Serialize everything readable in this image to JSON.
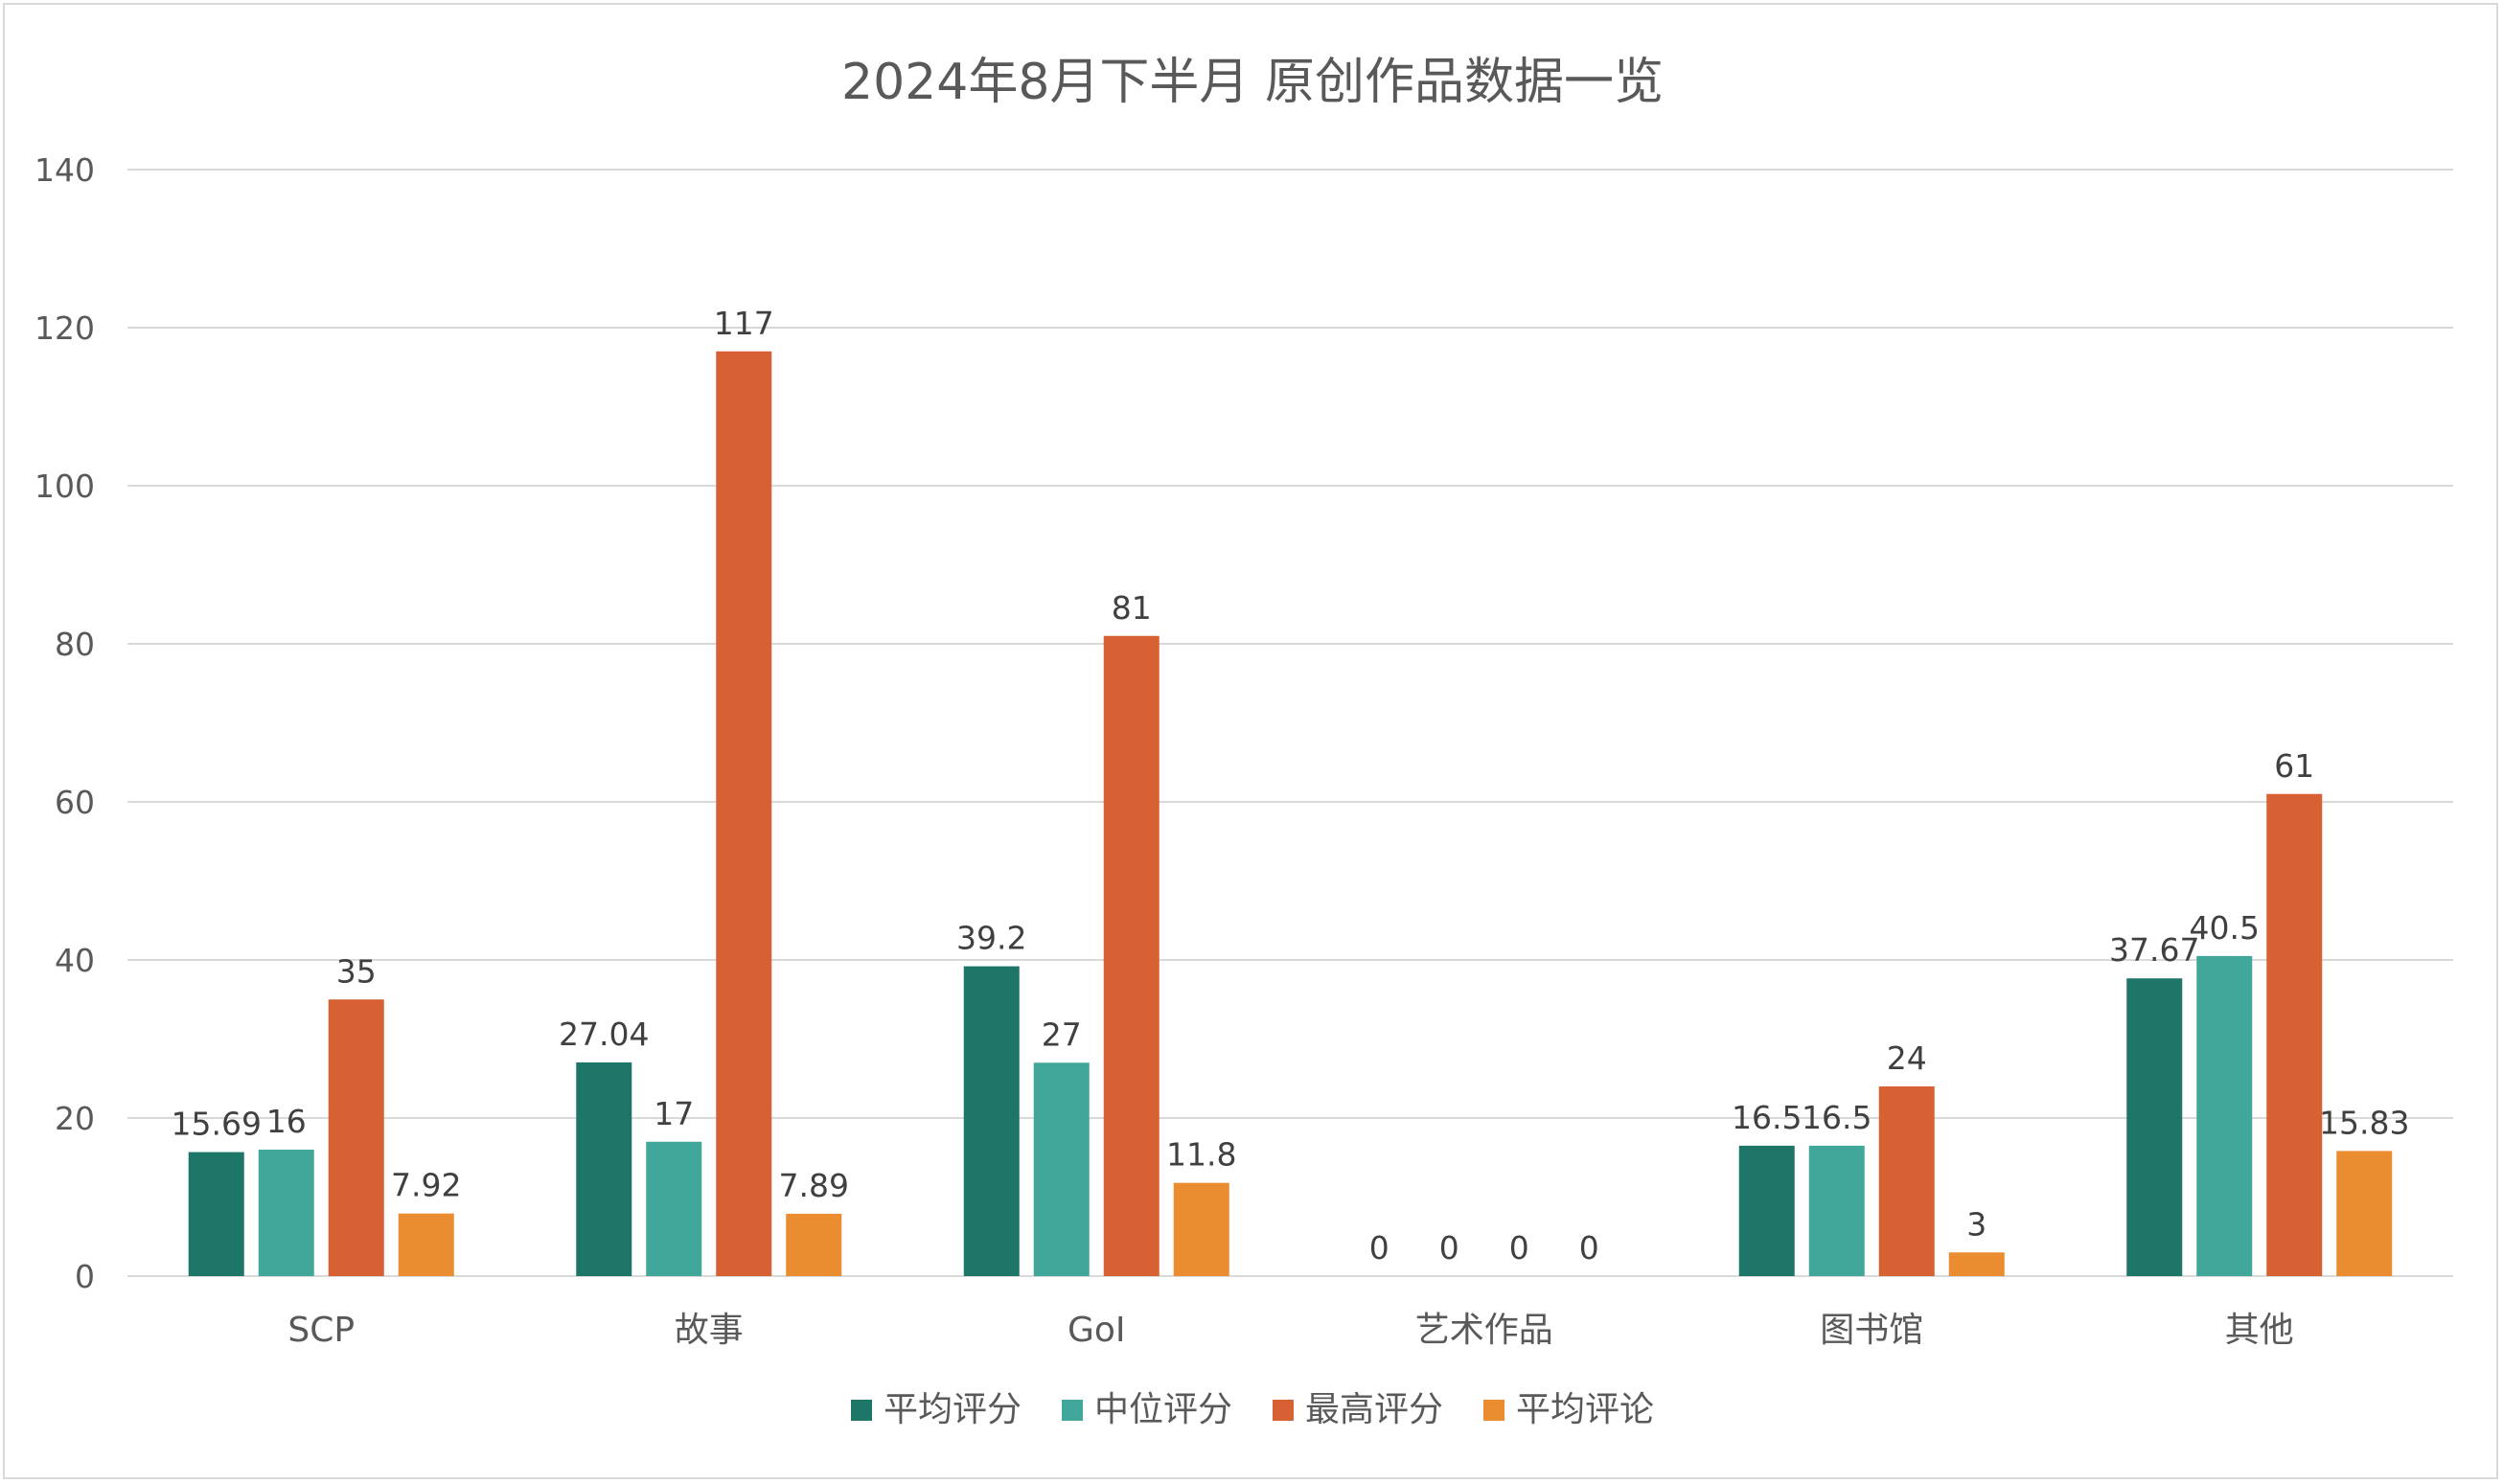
{
  "chart_data": {
    "type": "bar",
    "title": "2024年8月下半月 原创作品数据一览",
    "categories": [
      "SCP",
      "故事",
      "GoI",
      "艺术作品",
      "图书馆",
      "其他"
    ],
    "series": [
      {
        "name": "平均评分",
        "color": "#1e7668",
        "values": [
          15.69,
          27.04,
          39.2,
          0,
          16.5,
          37.67
        ]
      },
      {
        "name": "中位评分",
        "color": "#41a79b",
        "values": [
          16,
          17,
          27,
          0,
          16.5,
          40.5
        ]
      },
      {
        "name": "最高评分",
        "color": "#d86134",
        "values": [
          35,
          117,
          81,
          0,
          24,
          61
        ]
      },
      {
        "name": "平均评论",
        "color": "#ea8c30",
        "values": [
          7.92,
          7.89,
          11.8,
          0,
          3,
          15.83
        ]
      }
    ],
    "ylim": [
      0,
      140
    ],
    "yticks": [
      0,
      20,
      40,
      60,
      80,
      100,
      120,
      140
    ],
    "xlabel": "",
    "ylabel": "",
    "grid": true,
    "legend": "bottom",
    "data_labels": true
  }
}
